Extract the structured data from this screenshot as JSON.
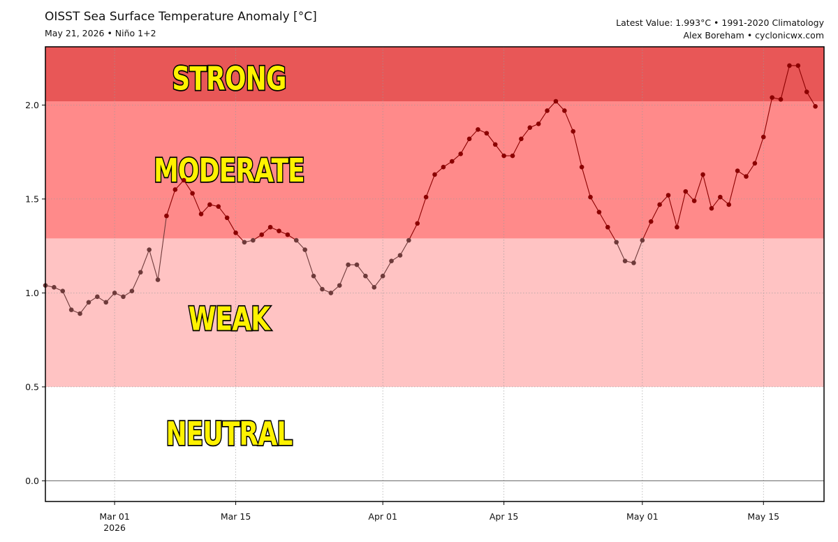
{
  "header": {
    "title": "OISST Sea Surface Temperature Anomaly [°C]",
    "subtitle": "May 21, 2026 • Niño 1+2",
    "latest": "Latest Value: 1.993°C • 1991-2020 Climatology",
    "credit": "Alex Boreham • cyclonicwx.com"
  },
  "chart_data": {
    "type": "line",
    "title": "OISST Sea Surface Temperature Anomaly [°C]",
    "subtitle": "May 21, 2026 • Niño 1+2",
    "xlabel": "",
    "ylabel": "",
    "ylim": [
      -0.11,
      2.31
    ],
    "xlim": [
      "2026-02-21",
      "2026-05-22"
    ],
    "yticks": [
      0.0,
      0.5,
      1.0,
      1.5,
      2.0
    ],
    "ytick_labels": [
      "0.0",
      "0.5",
      "1.0",
      "1.5",
      "2.0"
    ],
    "xticks": [
      {
        "date": "2026-03-01",
        "label": "Mar 01",
        "sublabel": "2026"
      },
      {
        "date": "2026-03-15",
        "label": "Mar 15",
        "sublabel": ""
      },
      {
        "date": "2026-04-01",
        "label": "Apr 01",
        "sublabel": ""
      },
      {
        "date": "2026-04-15",
        "label": "Apr 15",
        "sublabel": ""
      },
      {
        "date": "2026-05-01",
        "label": "May 01",
        "sublabel": ""
      },
      {
        "date": "2026-05-15",
        "label": "May 15",
        "sublabel": ""
      }
    ],
    "grid": true,
    "zero_line": true,
    "bands": [
      {
        "label": "NEUTRAL",
        "from": -0.11,
        "to": 0.5,
        "color": "#ffffff"
      },
      {
        "label": "WEAK",
        "from": 0.5,
        "to": 1.29,
        "color": "#ffc3c3"
      },
      {
        "label": "MODERATE",
        "from": 1.29,
        "to": 2.02,
        "color": "#ff8a8a"
      },
      {
        "label": "STRONG",
        "from": 2.02,
        "to": 2.31,
        "color": "#e85757"
      }
    ],
    "series": [
      {
        "color_low": "#6e3a3a",
        "color_high": "#8b0000",
        "x": [
          "2026-02-21",
          "2026-02-22",
          "2026-02-23",
          "2026-02-24",
          "2026-02-25",
          "2026-02-26",
          "2026-02-27",
          "2026-02-28",
          "2026-03-01",
          "2026-03-02",
          "2026-03-03",
          "2026-03-04",
          "2026-03-05",
          "2026-03-06",
          "2026-03-07",
          "2026-03-08",
          "2026-03-09",
          "2026-03-10",
          "2026-03-11",
          "2026-03-12",
          "2026-03-13",
          "2026-03-14",
          "2026-03-15",
          "2026-03-16",
          "2026-03-17",
          "2026-03-18",
          "2026-03-19",
          "2026-03-20",
          "2026-03-21",
          "2026-03-22",
          "2026-03-23",
          "2026-03-24",
          "2026-03-25",
          "2026-03-26",
          "2026-03-27",
          "2026-03-28",
          "2026-03-29",
          "2026-03-30",
          "2026-03-31",
          "2026-04-01",
          "2026-04-02",
          "2026-04-03",
          "2026-04-04",
          "2026-04-05",
          "2026-04-06",
          "2026-04-07",
          "2026-04-08",
          "2026-04-09",
          "2026-04-10",
          "2026-04-11",
          "2026-04-12",
          "2026-04-13",
          "2026-04-14",
          "2026-04-15",
          "2026-04-16",
          "2026-04-17",
          "2026-04-18",
          "2026-04-19",
          "2026-04-20",
          "2026-04-21",
          "2026-04-22",
          "2026-04-23",
          "2026-04-24",
          "2026-04-25",
          "2026-04-26",
          "2026-04-27",
          "2026-04-28",
          "2026-04-29",
          "2026-04-30",
          "2026-05-01",
          "2026-05-02",
          "2026-05-03",
          "2026-05-04",
          "2026-05-05",
          "2026-05-06",
          "2026-05-07",
          "2026-05-08",
          "2026-05-09",
          "2026-05-10",
          "2026-05-11",
          "2026-05-12",
          "2026-05-13",
          "2026-05-14",
          "2026-05-15",
          "2026-05-16",
          "2026-05-17",
          "2026-05-18",
          "2026-05-19",
          "2026-05-20",
          "2026-05-21"
        ],
        "values": [
          1.04,
          1.03,
          1.01,
          0.91,
          0.89,
          0.95,
          0.98,
          0.95,
          1.0,
          0.98,
          1.01,
          1.11,
          1.23,
          1.07,
          1.41,
          1.55,
          1.6,
          1.53,
          1.42,
          1.47,
          1.46,
          1.4,
          1.32,
          1.27,
          1.28,
          1.31,
          1.35,
          1.33,
          1.31,
          1.28,
          1.23,
          1.09,
          1.02,
          1.0,
          1.04,
          1.15,
          1.15,
          1.09,
          1.03,
          1.09,
          1.17,
          1.2,
          1.28,
          1.37,
          1.51,
          1.63,
          1.67,
          1.7,
          1.74,
          1.82,
          1.87,
          1.85,
          1.79,
          1.73,
          1.73,
          1.82,
          1.88,
          1.9,
          1.97,
          2.02,
          1.97,
          1.86,
          1.67,
          1.51,
          1.43,
          1.35,
          1.27,
          1.17,
          1.16,
          1.28,
          1.38,
          1.47,
          1.52,
          1.35,
          1.54,
          1.49,
          1.63,
          1.45,
          1.51,
          1.47,
          1.65,
          1.62,
          1.69,
          1.83,
          2.04,
          2.03,
          2.21,
          2.21,
          2.07,
          1.993
        ]
      }
    ]
  }
}
